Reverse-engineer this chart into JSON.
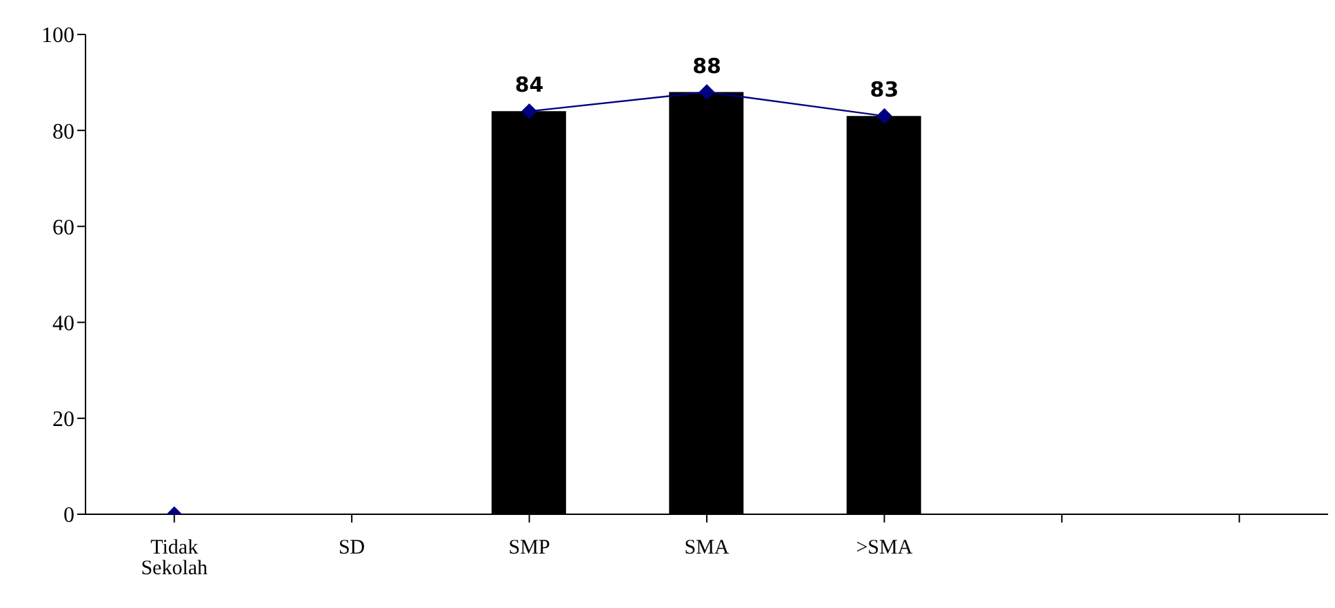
{
  "chart_data": {
    "type": "bar",
    "categories": [
      "Tidak Sekolah",
      "SD",
      "SMP",
      "SMA",
      ">SMA",
      null,
      null
    ],
    "series": [
      {
        "color": "#000000",
        "values": [
          null,
          null,
          84,
          88,
          83,
          null,
          null
        ]
      },
      {
        "type": "line",
        "color": "#000080",
        "marker": "diamond",
        "values": [
          0,
          null,
          84,
          88,
          83,
          null,
          null
        ],
        "value_labels": [
          null,
          null,
          "84",
          "88",
          "83",
          null,
          null
        ]
      }
    ],
    "ylim": [
      0,
      100
    ],
    "yticks": [
      0,
      20,
      40,
      60,
      80,
      100
    ],
    "grid": false,
    "legend": false
  }
}
